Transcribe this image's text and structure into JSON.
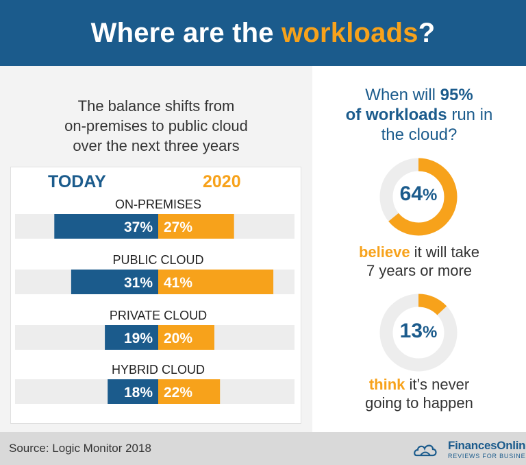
{
  "header": {
    "title_part1": "Where are the ",
    "title_accent": "workloads",
    "title_part2": "?"
  },
  "left_heading": {
    "line1": "The balance shifts from",
    "line2": "on-premises to public cloud",
    "line3": "over the next three years"
  },
  "chart_data": {
    "type": "bar",
    "orientation": "diverging-horizontal",
    "column_labels": {
      "left": "TODAY",
      "right": "2020"
    },
    "categories": [
      "ON-PREMISES",
      "PUBLIC CLOUD",
      "PRIVATE CLOUD",
      "HYBRID CLOUD"
    ],
    "series": [
      {
        "name": "TODAY",
        "values": [
          37,
          31,
          19,
          18
        ],
        "labels": [
          "37%",
          "31%",
          "19%",
          "18%"
        ],
        "color": "#1b5b8c"
      },
      {
        "name": "2020",
        "values": [
          27,
          41,
          20,
          22
        ],
        "labels": [
          "27%",
          "41%",
          "20%",
          "22%"
        ],
        "color": "#f7a21b"
      }
    ],
    "unit": "%"
  },
  "right": {
    "question_line1_pre": "When will ",
    "question_line1_bold": "95%",
    "question_line2_bold": "of workloads",
    "question_line2_post": " run in",
    "question_line3": "the cloud?",
    "donuts": [
      {
        "value": 64,
        "number": "64",
        "pct_sign": "%",
        "caption_accent": "believe",
        "caption_rest": " it will take",
        "caption_line2": "7 years or more"
      },
      {
        "value": 13,
        "number": "13",
        "pct_sign": "%",
        "caption_accent": "think",
        "caption_rest": " it’s never",
        "caption_line2": "going to happen"
      }
    ]
  },
  "footer": {
    "source": "Source:  Logic Monitor 2018",
    "logo_name": "FinancesOnline",
    "logo_tagline": "REVIEWS FOR BUSINESS"
  },
  "colors": {
    "blue": "#1b5b8c",
    "orange": "#f7a21b",
    "track": "#ededed"
  }
}
